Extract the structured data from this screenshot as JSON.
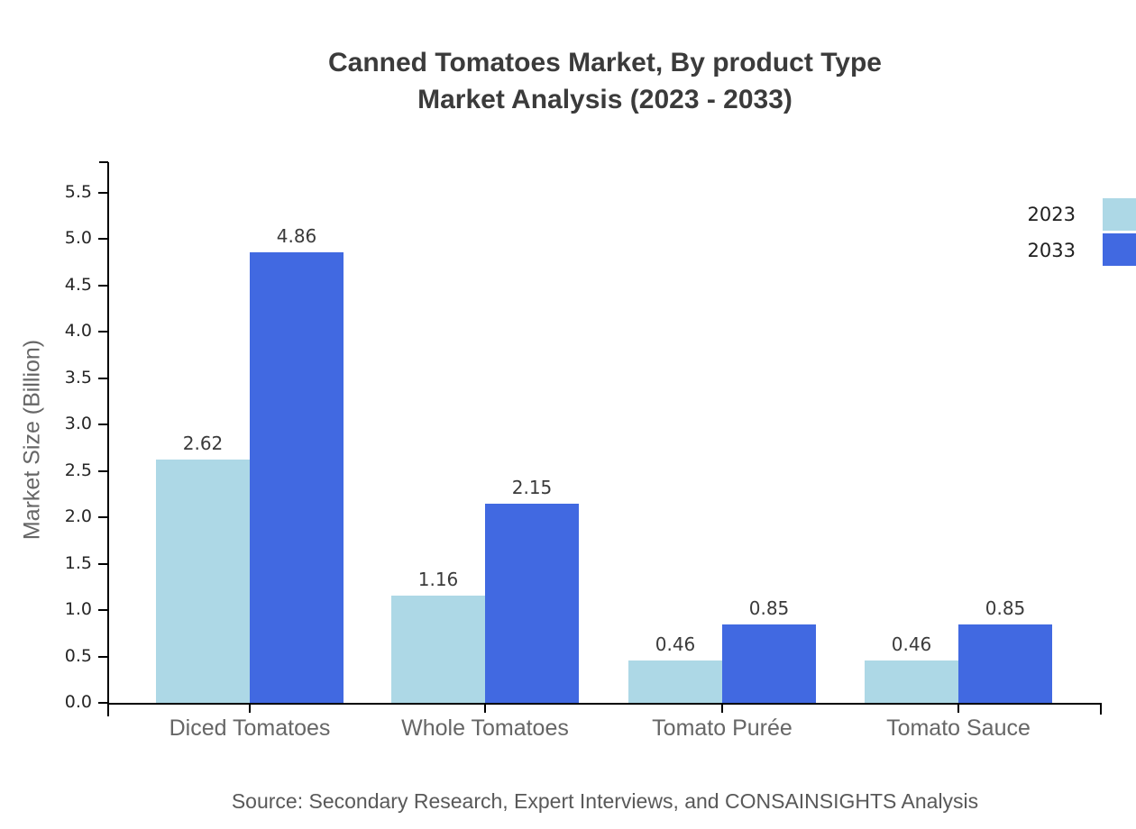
{
  "title": {
    "line1": "Canned Tomatoes Market, By product Type",
    "line2": "Market Analysis (2023 - 2033)"
  },
  "source": "Source: Secondary Research, Expert Interviews, and CONSAINSIGHTS Analysis",
  "chart_data": {
    "type": "bar",
    "title": "Canned Tomatoes Market, By product Type Market Analysis (2023 - 2033)",
    "categories": [
      "Diced Tomatoes",
      "Whole Tomatoes",
      "Tomato Purée",
      "Tomato Sauce"
    ],
    "series": [
      {
        "name": "2023",
        "color": "#ADD8E6",
        "values": [
          2.62,
          1.16,
          0.46,
          0.46
        ],
        "labels": [
          "2.62",
          "1.16",
          "0.46",
          "0.46"
        ]
      },
      {
        "name": "2033",
        "color": "#4169E1",
        "values": [
          4.86,
          2.15,
          0.85,
          0.85
        ],
        "labels": [
          "4.86",
          "2.15",
          "0.85",
          "0.85"
        ]
      }
    ],
    "xlabel": "",
    "ylabel": "Market Size (Billion)",
    "ylim": [
      0,
      5.83
    ],
    "yticks": [
      "0.0",
      "0.5",
      "1.0",
      "1.5",
      "2.0",
      "2.5",
      "3.0",
      "3.5",
      "4.0",
      "4.5",
      "5.0",
      "5.5"
    ],
    "grid": false,
    "value_labels": true,
    "legend_position": "upper-right-outside"
  },
  "legend": {
    "items": [
      {
        "label": "2023",
        "color": "#ADD8E6"
      },
      {
        "label": "2033",
        "color": "#4169E1"
      }
    ]
  }
}
